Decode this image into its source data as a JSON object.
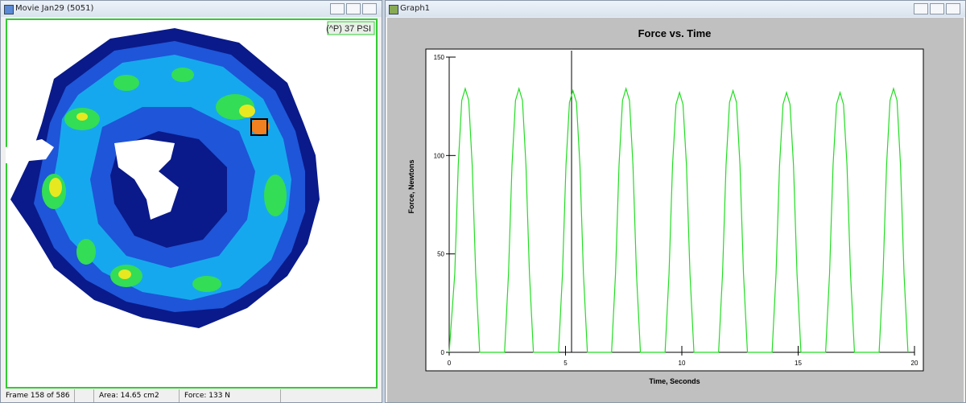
{
  "movie_window": {
    "title": "Movie Jan29 (5051)",
    "overlay": "(^P) 37 PSI",
    "status": {
      "frame": "Frame 158 of 586",
      "area": "Area: 14.65 cm2",
      "force": "Force: 133 N"
    }
  },
  "graph_window": {
    "title": "Graph1",
    "chart": {
      "type": "line",
      "title": "Force vs. Time",
      "x_label": "Time, Seconds",
      "y_label": "Force, Newtons",
      "color": "#22dd22",
      "cursor_x": 5.26,
      "xlim": [
        0,
        20
      ],
      "ylim": [
        0,
        150
      ],
      "xticks": [
        0,
        5,
        10,
        15,
        20
      ],
      "yticks": [
        0,
        50,
        100,
        150
      ],
      "x": [
        0,
        0.24,
        0.39,
        0.54,
        0.69,
        0.84,
        0.99,
        1.14,
        1.31,
        2.38,
        2.55,
        2.7,
        2.85,
        3.0,
        3.15,
        3.3,
        3.45,
        3.62,
        4.7,
        4.87,
        5.02,
        5.17,
        5.32,
        5.47,
        5.62,
        5.77,
        5.94,
        6.98,
        7.15,
        7.3,
        7.45,
        7.6,
        7.75,
        7.9,
        8.05,
        8.22,
        9.28,
        9.45,
        9.6,
        9.75,
        9.9,
        10.05,
        10.2,
        10.35,
        10.52,
        11.58,
        11.75,
        11.9,
        12.05,
        12.2,
        12.35,
        12.5,
        12.65,
        12.82,
        13.88,
        14.05,
        14.2,
        14.35,
        14.5,
        14.65,
        14.8,
        14.95,
        15.12,
        16.18,
        16.35,
        16.5,
        16.65,
        16.8,
        16.95,
        17.1,
        17.25,
        17.42,
        18.48,
        18.65,
        18.8,
        18.95,
        19.1,
        19.25,
        19.4,
        19.55,
        19.72
      ],
      "values": [
        0,
        40,
        95,
        128,
        134,
        128,
        95,
        40,
        0,
        0,
        40,
        95,
        128,
        134,
        128,
        95,
        40,
        0,
        0,
        40,
        95,
        127,
        133,
        127,
        95,
        40,
        0,
        0,
        40,
        95,
        128,
        134,
        128,
        95,
        40,
        0,
        0,
        40,
        95,
        126,
        132,
        126,
        95,
        40,
        0,
        0,
        40,
        95,
        127,
        133,
        127,
        95,
        40,
        0,
        0,
        40,
        95,
        126,
        132,
        126,
        95,
        40,
        0,
        0,
        40,
        95,
        126,
        132,
        126,
        95,
        40,
        0,
        0,
        40,
        95,
        128,
        134,
        128,
        95,
        40,
        0
      ]
    }
  }
}
